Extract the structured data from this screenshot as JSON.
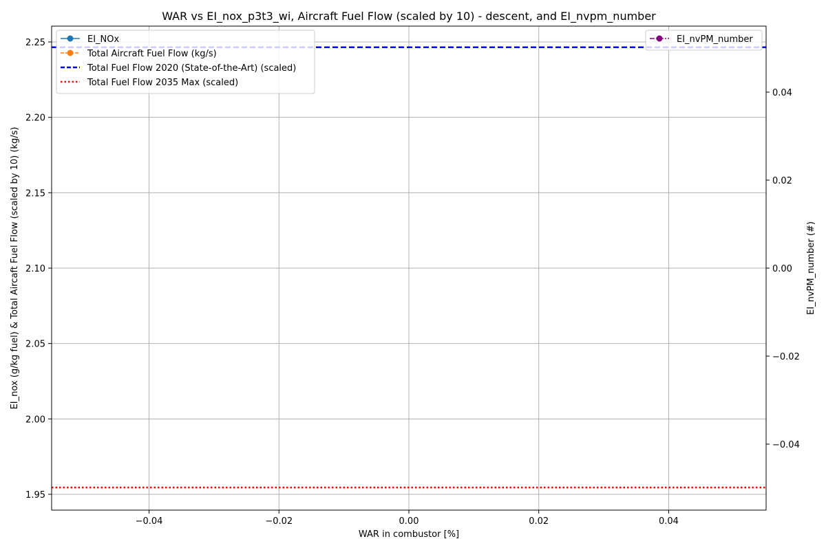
{
  "chart_data": {
    "type": "line",
    "title": "WAR vs EI_nox_p3t3_wi, Aircraft Fuel Flow (scaled by 10) - descent, and EI_nvpm_number",
    "xlabel": "WAR in combustor [%]",
    "ylabel": "EI_nox (g/kg fuel) & Total Aircaft Fuel Flow (scaled by 10) (kg/s)",
    "y2label": "EI_nvPM_number (#)",
    "xlim": [
      -0.055,
      0.055
    ],
    "ylim": [
      1.9395,
      2.2605
    ],
    "y2lim": [
      -0.055,
      0.055
    ],
    "x_ticks": [
      "−0.04",
      "−0.02",
      "0.00",
      "0.02",
      "0.04"
    ],
    "x_tick_values": [
      -0.04,
      -0.02,
      0.0,
      0.02,
      0.04
    ],
    "y_ticks": [
      "1.95",
      "2.00",
      "2.05",
      "2.10",
      "2.15",
      "2.20",
      "2.25"
    ],
    "y_tick_values": [
      1.95,
      2.0,
      2.05,
      2.1,
      2.15,
      2.2,
      2.25
    ],
    "y2_ticks": [
      "−0.04",
      "−0.02",
      "0.00",
      "0.02",
      "0.04"
    ],
    "y2_tick_values": [
      -0.04,
      -0.02,
      0.0,
      0.02,
      0.04
    ],
    "grid": true,
    "series": [
      {
        "name": "EI_NOx",
        "axis": "left",
        "style": "solid-marker",
        "color": "#1f77b4",
        "x": [],
        "y": []
      },
      {
        "name": "Total Aircraft Fuel Flow (kg/s)",
        "axis": "left",
        "style": "dashed-marker",
        "color": "#ff7f0e",
        "x": [],
        "y": []
      },
      {
        "name": "EI_nvPM_number",
        "axis": "right",
        "style": "dashdot-marker",
        "color": "#800080",
        "x": [],
        "y": []
      }
    ],
    "reference_lines": [
      {
        "name": "Total Fuel Flow 2020 (State-of-the-Art) (scaled)",
        "y": 2.2465,
        "style": "dashed",
        "color": "#0000ff"
      },
      {
        "name": "Total Fuel Flow 2035 Max (scaled)",
        "y": 1.9545,
        "style": "dotted",
        "color": "#ff0000"
      }
    ],
    "legends": [
      {
        "placement": "upper-left",
        "entries": [
          "EI_NOx",
          "Total Aircraft Fuel Flow (kg/s)",
          "Total Fuel Flow 2020 (State-of-the-Art) (scaled)",
          "Total Fuel Flow 2035 Max (scaled)"
        ]
      },
      {
        "placement": "upper-right",
        "entries": [
          "EI_nvPM_number"
        ]
      }
    ]
  }
}
